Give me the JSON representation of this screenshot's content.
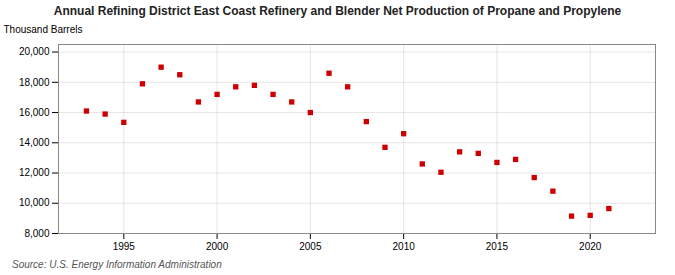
{
  "chart_data": {
    "type": "scatter",
    "title": "Annual Refining District East Coast Refinery and Blender Net Production of Propane and Propylene",
    "caption": "Source: U.S. Energy Information Administration",
    "ylabel": "Thousand Barrels",
    "x": [
      1993,
      1994,
      1995,
      1996,
      1997,
      1998,
      1999,
      2000,
      2001,
      2002,
      2003,
      2004,
      2005,
      2006,
      2007,
      2008,
      2009,
      2010,
      2011,
      2012,
      2013,
      2014,
      2015,
      2016,
      2017,
      2018,
      2019,
      2020,
      2021
    ],
    "values": [
      16100,
      15900,
      15350,
      17900,
      19000,
      18500,
      16700,
      17200,
      17700,
      17800,
      17200,
      16700,
      16000,
      18600,
      17700,
      15400,
      13700,
      14600,
      12600,
      12050,
      13400,
      13300,
      12700,
      12900,
      11700,
      10800,
      9150,
      9200,
      9650
    ],
    "color": "#cc0000",
    "marker": "square",
    "xlim": [
      1991.5,
      2023.5
    ],
    "xticks": [
      1995,
      2000,
      2005,
      2010,
      2015,
      2020
    ],
    "ylim": [
      8000,
      20500
    ],
    "yticks": [
      {
        "value": 8000,
        "label": "8,000"
      },
      {
        "value": 10000,
        "label": "10,000"
      },
      {
        "value": 12000,
        "label": "12,000"
      },
      {
        "value": 14000,
        "label": "14,000"
      },
      {
        "value": 16000,
        "label": "16,000"
      },
      {
        "value": 18000,
        "label": "18,000"
      },
      {
        "value": 20000,
        "label": "20,000"
      }
    ],
    "grid": true
  }
}
